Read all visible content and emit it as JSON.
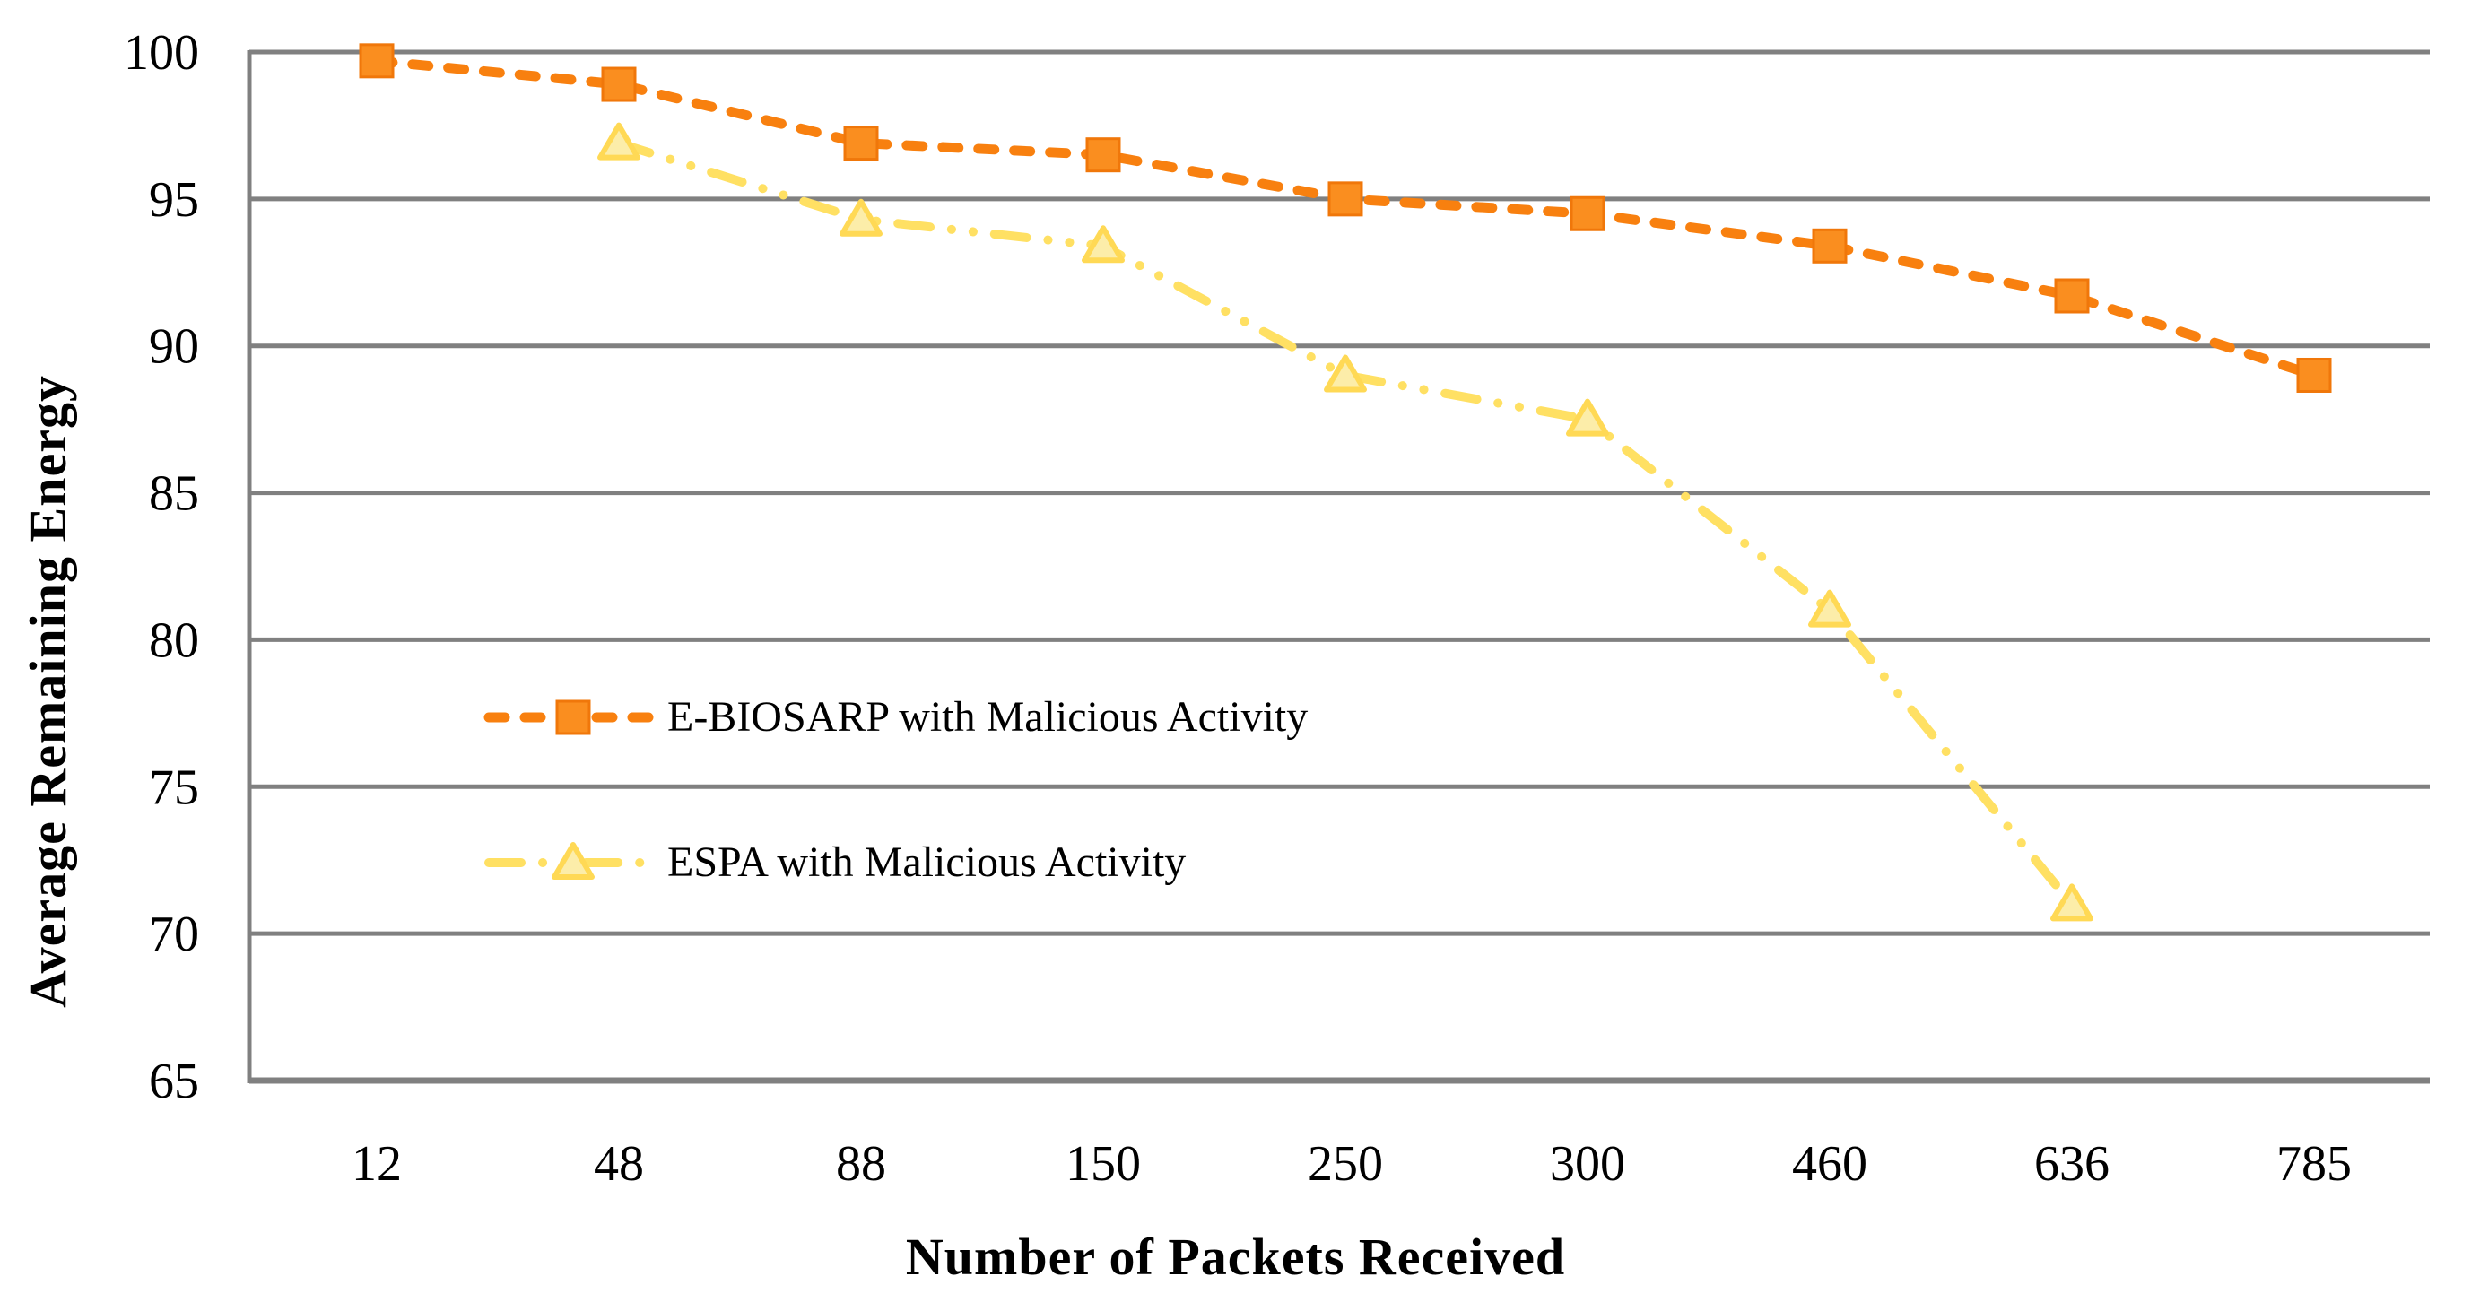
{
  "figure": {
    "background": "#FFFFFF",
    "grid_color": "#808080",
    "text_color": "#000000"
  },
  "chart_data": {
    "type": "line",
    "title": "",
    "xlabel": "Number of Packets Received",
    "ylabel": "Average Remaining Energy",
    "categories": [
      "12",
      "48",
      "88",
      "150",
      "250",
      "300",
      "460",
      "636",
      "785"
    ],
    "yticks": [
      65,
      70,
      75,
      80,
      85,
      90,
      95,
      100
    ],
    "ylim": [
      65,
      100
    ],
    "grid": "horizontal",
    "legend_position": "inside-left-middle",
    "series": [
      {
        "name": "E-BIOSARP with Malicious Activity",
        "marker": "square",
        "line_style": "dashed",
        "line_color": "#F8800F",
        "marker_fill": "#FA8E1F",
        "marker_stroke": "#F0770A",
        "values": [
          99.7,
          98.9,
          96.9,
          96.5,
          95.0,
          94.5,
          93.4,
          91.7,
          89.0
        ]
      },
      {
        "name": "ESPA with Malicious Activity",
        "marker": "triangle",
        "line_style": "dash-dot-dot",
        "line_color": "#FFE063",
        "marker_fill": "#FCEDA9",
        "marker_stroke": "#FFD955",
        "values": [
          null,
          96.9,
          94.3,
          93.4,
          89.0,
          87.5,
          81.0,
          71.0,
          null
        ]
      }
    ]
  }
}
